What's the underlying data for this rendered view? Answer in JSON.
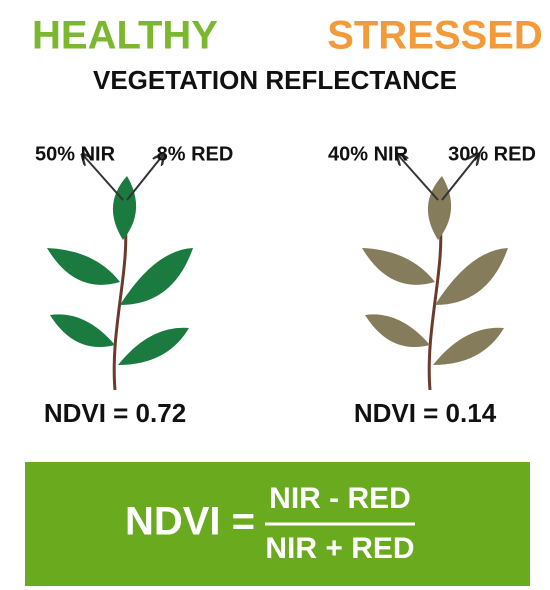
{
  "header": {
    "healthy": "HEALTHY",
    "stressed": "STRESSED",
    "subtitle": "VEGETATION REFLECTANCE"
  },
  "plants": [
    {
      "nir_label": "50% NIR",
      "red_label": "8% RED",
      "ndvi_label": "NDVI = 0.72"
    },
    {
      "nir_label": "40% NIR",
      "red_label": "30% RED",
      "ndvi_label": "NDVI = 0.14"
    }
  ],
  "formula": {
    "lhs": "NDVI =",
    "numerator": "NIR - RED",
    "denominator": "NIR + RED"
  }
}
